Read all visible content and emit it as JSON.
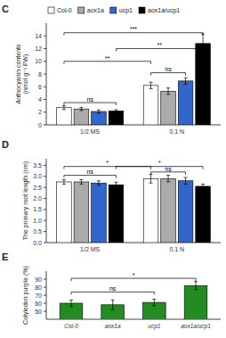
{
  "chart_data": [
    {
      "type": "bar",
      "title": "C",
      "ylabel": "Anthocyanin contents\n(nmol g⁻¹ FW)",
      "categories": [
        "1/2 MS",
        "0.1 N"
      ],
      "series": [
        {
          "name": "Col-0",
          "color": "white",
          "values": [
            2.7,
            6.2
          ],
          "errors": [
            0.3,
            0.5
          ]
        },
        {
          "name": "aox1a",
          "color": "#aaaaaa",
          "values": [
            2.5,
            5.3
          ],
          "errors": [
            0.25,
            0.5
          ]
        },
        {
          "name": "ucp1",
          "color": "#3366cc",
          "values": [
            2.1,
            6.9
          ],
          "errors": [
            0.25,
            0.5
          ]
        },
        {
          "name": "aox1a/ucp1",
          "color": "black",
          "values": [
            2.2,
            12.8
          ],
          "errors": [
            0.2,
            1.5
          ]
        }
      ],
      "ylim": [
        0,
        16
      ],
      "yticks": [
        0,
        2,
        4,
        6,
        8,
        10,
        12,
        14
      ],
      "legend": "top",
      "grid": false,
      "annotations": [
        {
          "text": "ns",
          "category1": 0,
          "series1": 0,
          "category2": 0,
          "series2": 3,
          "y": 3.5
        },
        {
          "text": "ns",
          "category1": 1,
          "series1": 0,
          "category2": 1,
          "series2": 2,
          "y": 8.2
        },
        {
          "text": "**",
          "category1": 0,
          "series1": 0,
          "category2": 1,
          "series2": 0,
          "y": 10.0
        },
        {
          "text": "**",
          "category1": 0,
          "series1": 3,
          "category2": 1,
          "series2": 3,
          "y": 12.0
        },
        {
          "text": "***",
          "category1": 0,
          "series1": 0,
          "category2": 1,
          "series2": 3,
          "y": 14.5
        }
      ]
    },
    {
      "type": "bar",
      "title": "D",
      "ylabel": "The primary root length (cm)",
      "categories": [
        "1/2 MS",
        "0.1 N"
      ],
      "series": [
        {
          "name": "Col-0",
          "color": "white",
          "values": [
            2.75,
            2.9
          ],
          "errors": [
            0.1,
            0.2
          ]
        },
        {
          "name": "aox1a",
          "color": "#aaaaaa",
          "values": [
            2.75,
            2.9
          ],
          "errors": [
            0.1,
            0.15
          ]
        },
        {
          "name": "ucp1",
          "color": "#3366cc",
          "values": [
            2.7,
            2.8
          ],
          "errors": [
            0.1,
            0.15
          ]
        },
        {
          "name": "aox1a/ucp1",
          "color": "black",
          "values": [
            2.62,
            2.55
          ],
          "errors": [
            0.12,
            0.1
          ]
        }
      ],
      "ylim": [
        0.0,
        3.8
      ],
      "yticks": [
        {
          "value": 0.0,
          "label": "0.0"
        },
        0.5,
        {
          "value": 1.0,
          "label": "1.0"
        },
        1.5,
        {
          "value": 2.0,
          "label": "2.0"
        },
        2.5,
        {
          "value": 3.0,
          "label": "3.0"
        },
        3.5
      ],
      "grid": false,
      "annotations": [
        {
          "text": "ns",
          "category1": 0,
          "series1": 0,
          "category2": 0,
          "series2": 3,
          "y": 3.05
        },
        {
          "text": "ns",
          "category1": 1,
          "series1": 0,
          "category2": 1,
          "series2": 2,
          "y": 3.2
        },
        {
          "text": "*",
          "category1": 0,
          "series1": 0,
          "category2": 1,
          "series2": 0,
          "y": 3.45
        },
        {
          "text": "*",
          "category1": 0,
          "series1": 3,
          "category2": 1,
          "series2": 3,
          "y": 3.45
        }
      ]
    },
    {
      "type": "bar",
      "title": "E",
      "ylabel": "Cotyledon purple (%)",
      "categories": [
        "Col-0",
        "aox1a",
        "ucp1",
        "aox1a/ucp1"
      ],
      "values": [
        60,
        58,
        61,
        82
      ],
      "errors": [
        4,
        6,
        4,
        5
      ],
      "color": "#228B22",
      "ylim": [
        40,
        100
      ],
      "yticks": [
        50,
        60,
        70,
        80,
        90
      ],
      "grid": false,
      "annotations": [
        {
          "text": "ns",
          "index1": 0,
          "index2": 2,
          "y": 74
        },
        {
          "text": "*",
          "index1": 0,
          "index2": 3,
          "y": 91
        }
      ]
    }
  ]
}
